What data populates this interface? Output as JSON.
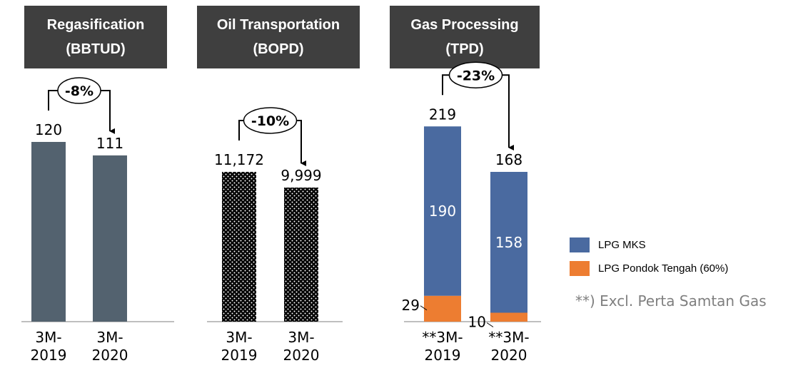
{
  "headers": [
    {
      "line1": "Regasification",
      "line2": "(BBTUD)"
    },
    {
      "line1": "Oil Transportation",
      "line2": "(BOPD)"
    },
    {
      "line1": "Gas Processing",
      "line2": "(TPD)"
    }
  ],
  "legend": {
    "items": [
      {
        "label": "LPG MKS",
        "color": "#4a6aa0"
      },
      {
        "label": "LPG Pondok Tengah (60%)",
        "color": "#ed7d31"
      }
    ]
  },
  "footnote": "**) Excl. Perta Samtan Gas",
  "colors": {
    "regas_bar": "#53626f",
    "oil_bar": "#000000",
    "mks": "#4a6aa0",
    "pondok": "#ed7d31"
  },
  "chart_data": [
    {
      "type": "bar",
      "title": "Regasification (BBTUD)",
      "categories": [
        "3M-2019",
        "3M-2020"
      ],
      "category_lines": [
        [
          "3M-",
          "2019"
        ],
        [
          "3M-",
          "2020"
        ]
      ],
      "values": [
        120,
        111
      ],
      "value_labels": [
        "120",
        "111"
      ],
      "change_label": "-8%"
    },
    {
      "type": "bar",
      "title": "Oil Transportation (BOPD)",
      "categories": [
        "3M-2019",
        "3M-2020"
      ],
      "category_lines": [
        [
          "3M-",
          "2019"
        ],
        [
          "3M-",
          "2020"
        ]
      ],
      "values": [
        11172,
        9999
      ],
      "value_labels": [
        "11,172",
        "9,999"
      ],
      "change_label": "-10%",
      "pattern": "dotted"
    },
    {
      "type": "bar",
      "stacked": true,
      "title": "Gas Processing (TPD)",
      "categories": [
        "**3M-2019",
        "**3M-2020"
      ],
      "category_lines": [
        [
          "**3M-",
          "2019"
        ],
        [
          "**3M-",
          "2020"
        ]
      ],
      "series": [
        {
          "name": "LPG Pondok Tengah (60%)",
          "values": [
            29,
            10
          ],
          "labels": [
            "29",
            "10"
          ]
        },
        {
          "name": "LPG MKS",
          "values": [
            190,
            158
          ],
          "labels": [
            "190",
            "158"
          ]
        }
      ],
      "totals": [
        219,
        168
      ],
      "total_labels": [
        "219",
        "168"
      ],
      "change_label": "-23%"
    }
  ]
}
